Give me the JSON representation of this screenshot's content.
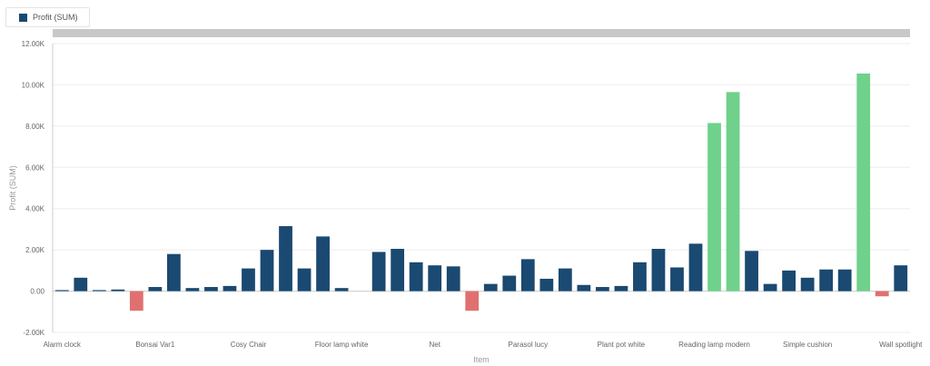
{
  "legend": {
    "label": "Profit (SUM)",
    "color": "#1a4971"
  },
  "colors": {
    "base": "#1a4971",
    "negative": "#e07070",
    "high": "#6fd18b",
    "grid": "#eeeeee",
    "axis": "#cccccc"
  },
  "chart_data": {
    "type": "bar",
    "xlabel": "Item",
    "ylabel": "Profit (SUM)",
    "ylim": [
      -2000,
      12000
    ],
    "yticks": [
      -2000,
      0,
      2000,
      4000,
      6000,
      8000,
      10000,
      12000
    ],
    "ytick_labels": [
      "-2.00K",
      "0.00",
      "2.00K",
      "4.00K",
      "6.00K",
      "8.00K",
      "10.00K",
      "12.00K"
    ],
    "grid": "horizontal",
    "legend_position": "top-left",
    "series": [
      {
        "name": "Profit (SUM)",
        "values": [
          50,
          650,
          50,
          80,
          -950,
          200,
          1800,
          150,
          200,
          250,
          1100,
          2000,
          3150,
          1100,
          2650,
          150,
          0,
          1900,
          2050,
          1400,
          1250,
          1200,
          -950,
          350,
          750,
          1550,
          600,
          1100,
          300,
          200,
          250,
          1400,
          2050,
          1150,
          2300,
          8150,
          9650,
          1950,
          350,
          1000,
          650,
          1050,
          1050,
          10550,
          -250,
          1250
        ]
      }
    ],
    "category_labels": [
      {
        "index": 1,
        "label": "Alarm clock"
      },
      {
        "index": 6,
        "label": "Bonsai Var1"
      },
      {
        "index": 11,
        "label": "Cosy Chair"
      },
      {
        "index": 16,
        "label": "Floor lamp white"
      },
      {
        "index": 21,
        "label": "Net"
      },
      {
        "index": 26,
        "label": "Parasol lucy"
      },
      {
        "index": 31,
        "label": "Plant pot white"
      },
      {
        "index": 36,
        "label": "Reading lamp modern"
      },
      {
        "index": 41,
        "label": "Simple cushion"
      },
      {
        "index": 46,
        "label": "Wall spotlight"
      }
    ]
  }
}
